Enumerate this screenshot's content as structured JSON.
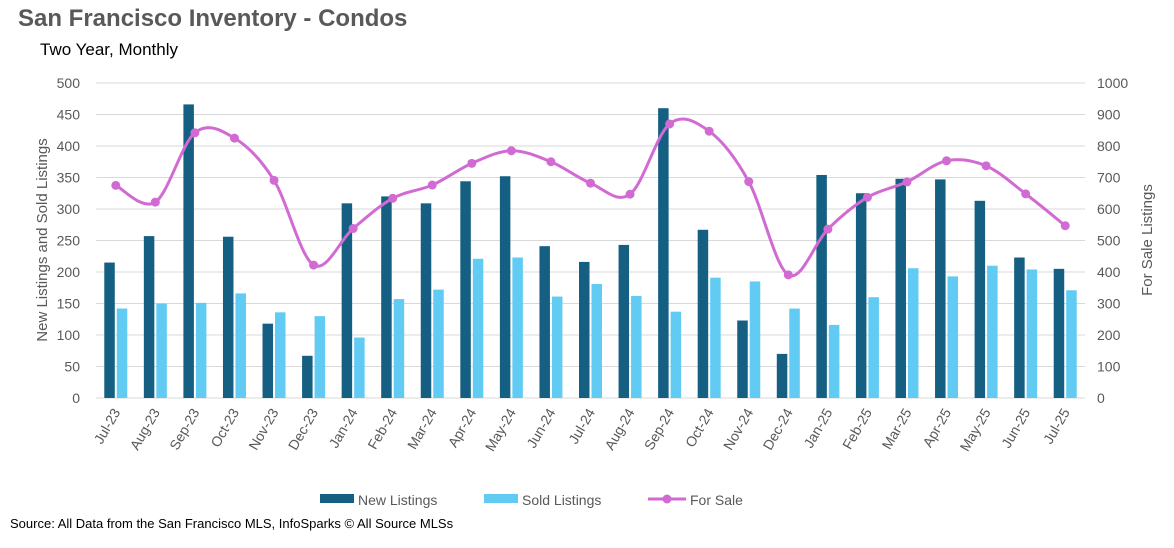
{
  "title": "San Francisco Inventory - Condos",
  "subtitle": "Two Year, Monthly",
  "source": "Source: All Data from the San Francisco MLS, InfoSparks © All Source MLSs",
  "colors": {
    "new": "#156082",
    "sold": "#61cbf3",
    "for_sale": "#d16bd3",
    "grid": "#d9d9d9"
  },
  "chart_data": {
    "type": "bar",
    "categories": [
      "Jul-23",
      "Aug-23",
      "Sep-23",
      "Oct-23",
      "Nov-23",
      "Dec-23",
      "Jan-24",
      "Feb-24",
      "Mar-24",
      "Apr-24",
      "May-24",
      "Jun-24",
      "Jul-24",
      "Aug-24",
      "Sep-24",
      "Oct-24",
      "Nov-24",
      "Dec-24",
      "Jan-25",
      "Feb-25",
      "Mar-25",
      "Apr-25",
      "May-25",
      "Jun-25",
      "Jul-25"
    ],
    "series": [
      {
        "name": "New Listings",
        "type": "bar",
        "axis": "left",
        "values": [
          215,
          257,
          466,
          256,
          118,
          67,
          309,
          320,
          309,
          344,
          352,
          241,
          216,
          243,
          460,
          267,
          123,
          70,
          354,
          325,
          348,
          347,
          313,
          223,
          205
        ]
      },
      {
        "name": "Sold Listings",
        "type": "bar",
        "axis": "left",
        "values": [
          142,
          150,
          151,
          166,
          136,
          130,
          96,
          157,
          172,
          221,
          223,
          161,
          181,
          162,
          137,
          191,
          185,
          142,
          116,
          160,
          206,
          193,
          210,
          204,
          171
        ]
      },
      {
        "name": "For Sale",
        "type": "line",
        "axis": "right",
        "values": [
          675,
          622,
          842,
          825,
          691,
          422,
          538,
          634,
          676,
          745,
          785,
          750,
          682,
          647,
          870,
          847,
          687,
          391,
          536,
          637,
          686,
          753,
          737,
          648,
          547
        ]
      }
    ],
    "ylabel": "New Listings and Sold Listings",
    "y2label": "For Sale Listings",
    "ylim": [
      0,
      500
    ],
    "y2lim": [
      0,
      1000
    ],
    "yticks": [
      "0",
      "50",
      "100",
      "150",
      "200",
      "250",
      "300",
      "350",
      "400",
      "450",
      "500"
    ],
    "y2ticks": [
      "0",
      "100",
      "200",
      "300",
      "400",
      "500",
      "600",
      "700",
      "800",
      "900",
      "1000"
    ],
    "grid": true,
    "legend": [
      "New Listings",
      "Sold Listings",
      "For Sale"
    ],
    "legend_position": "bottom"
  }
}
